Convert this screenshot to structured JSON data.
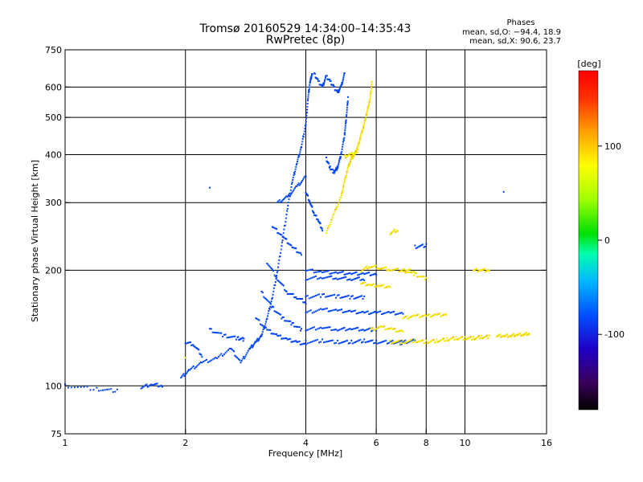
{
  "chart_data": {
    "type": "scatter",
    "title": "Tromsø 20160529 14:34:00–14:35:43",
    "subtitle": "RwPretec (8p)",
    "xlabel": "Frequency [MHz]",
    "ylabel": "Stationary phase Virtual Height [km]",
    "xscale": "log",
    "yscale": "log",
    "xlim": [
      1,
      16
    ],
    "ylim": [
      75,
      750
    ],
    "x_ticks": [
      1,
      2,
      4,
      6,
      8,
      10,
      16
    ],
    "x_tick_labels": [
      "1",
      "2",
      "4",
      "6",
      "8",
      "10",
      "16"
    ],
    "y_ticks": [
      75,
      100,
      200,
      300,
      400,
      500,
      600,
      750
    ],
    "y_tick_labels": [
      "75",
      "100",
      "200",
      "300",
      "400",
      "500",
      "600",
      "750"
    ],
    "grid": true,
    "info": {
      "heading": "Phases",
      "line_o": "mean, sd,O: −94.4, 18.9",
      "line_x": "mean, sd,X:  90.6, 23.7"
    },
    "colorbar": {
      "label": "[deg]",
      "range": [
        -180,
        180
      ],
      "ticks": [
        100,
        0,
        -100
      ],
      "tick_labels": [
        "100",
        "0",
        "-100"
      ]
    },
    "series": [
      {
        "polarity": "O-mode traces (phase ≈ −94°)",
        "phase": -94,
        "traces": [
          [
            [
              1.0,
              100
            ],
            [
              1.2,
              98
            ],
            [
              1.35,
              97
            ]
          ],
          [
            [
              1.55,
              99
            ],
            [
              1.65,
              101
            ],
            [
              1.75,
              100
            ]
          ],
          [
            [
              1.95,
              105
            ],
            [
              2.05,
              110
            ],
            [
              2.2,
              115
            ],
            [
              2.4,
              118
            ],
            [
              2.6,
              125
            ],
            [
              2.75,
              115
            ],
            [
              2.9,
              125
            ],
            [
              3.0,
              130
            ],
            [
              3.1,
              135
            ]
          ],
          [
            [
              2.3,
              140
            ],
            [
              2.5,
              135
            ],
            [
              2.7,
              133
            ],
            [
              2.8,
              132
            ]
          ],
          [
            [
              2.0,
              130
            ],
            [
              2.1,
              128
            ],
            [
              2.2,
              120
            ]
          ],
          [
            [
              3.1,
              135
            ],
            [
              3.2,
              150
            ],
            [
              3.3,
              170
            ],
            [
              3.4,
              200
            ],
            [
              3.5,
              240
            ],
            [
              3.6,
              290
            ],
            [
              3.7,
              340
            ],
            [
              3.8,
              380
            ],
            [
              3.9,
              420
            ],
            [
              4.0,
              480
            ],
            [
              4.05,
              560
            ],
            [
              4.1,
              620
            ],
            [
              4.15,
              650
            ]
          ],
          [
            [
              4.2,
              650
            ],
            [
              4.3,
              620
            ],
            [
              4.4,
              600
            ],
            [
              4.5,
              640
            ],
            [
              4.6,
              620
            ],
            [
              4.7,
              600
            ],
            [
              4.8,
              580
            ],
            [
              4.9,
              600
            ],
            [
              5.0,
              650
            ]
          ],
          [
            [
              4.5,
              390
            ],
            [
              4.6,
              370
            ],
            [
              4.7,
              360
            ],
            [
              4.8,
              370
            ],
            [
              4.9,
              400
            ],
            [
              5.0,
              450
            ],
            [
              5.05,
              500
            ],
            [
              5.1,
              560
            ]
          ],
          [
            [
              4.0,
              320
            ],
            [
              4.1,
              300
            ],
            [
              4.2,
              280
            ],
            [
              4.3,
              270
            ],
            [
              4.4,
              255
            ]
          ],
          [
            [
              3.0,
              150
            ],
            [
              3.2,
              140
            ],
            [
              3.4,
              135
            ],
            [
              3.6,
              132
            ],
            [
              3.8,
              130
            ],
            [
              4.0,
              128
            ]
          ],
          [
            [
              3.1,
              175
            ],
            [
              3.3,
              160
            ],
            [
              3.5,
              150
            ],
            [
              3.7,
              145
            ],
            [
              3.9,
              140
            ]
          ],
          [
            [
              3.2,
              210
            ],
            [
              3.4,
              190
            ],
            [
              3.6,
              175
            ],
            [
              3.8,
              170
            ],
            [
              4.0,
              165
            ]
          ],
          [
            [
              3.3,
              260
            ],
            [
              3.5,
              245
            ],
            [
              3.7,
              230
            ],
            [
              3.9,
              220
            ]
          ],
          [
            [
              3.4,
              300
            ],
            [
              3.6,
              310
            ],
            [
              3.8,
              330
            ],
            [
              4.0,
              350
            ]
          ],
          [
            [
              4.0,
              130
            ],
            [
              4.4,
              131
            ],
            [
              4.8,
              130
            ],
            [
              5.2,
              130
            ],
            [
              5.6,
              131
            ],
            [
              6.0,
              130
            ],
            [
              6.5,
              130
            ],
            [
              7.0,
              129
            ]
          ],
          [
            [
              4.0,
              140
            ],
            [
              4.4,
              142
            ],
            [
              4.8,
              140
            ],
            [
              5.2,
              141
            ],
            [
              5.6,
              140
            ],
            [
              6.0,
              140
            ]
          ],
          [
            [
              4.0,
              155
            ],
            [
              4.4,
              158
            ],
            [
              4.8,
              157
            ],
            [
              5.2,
              156
            ],
            [
              5.6,
              155
            ],
            [
              6.0,
              155
            ],
            [
              6.5,
              155
            ],
            [
              7.0,
              154
            ]
          ],
          [
            [
              4.0,
              170
            ],
            [
              4.4,
              172
            ],
            [
              4.8,
              171
            ],
            [
              5.2,
              170
            ],
            [
              5.6,
              170
            ]
          ],
          [
            [
              4.0,
              190
            ],
            [
              4.4,
              192
            ],
            [
              4.8,
              191
            ],
            [
              5.2,
              190
            ],
            [
              5.6,
              190
            ]
          ],
          [
            [
              4.0,
              200
            ],
            [
              4.4,
              198
            ],
            [
              4.8,
              197
            ],
            [
              5.2,
              196
            ],
            [
              5.6,
              196
            ],
            [
              6.0,
              195
            ]
          ],
          [
            [
              6.5,
              130
            ],
            [
              7.0,
              130
            ],
            [
              7.5,
              131
            ]
          ],
          [
            [
              7.5,
              230
            ],
            [
              8.0,
              232
            ]
          ],
          [
            [
              2.3,
              330
            ]
          ],
          [
            [
              12.5,
              320
            ]
          ]
        ]
      },
      {
        "polarity": "X-mode traces (phase ≈ +91°)",
        "phase": 91,
        "traces": [
          [
            [
              4.5,
              250
            ],
            [
              4.7,
              280
            ],
            [
              4.9,
              310
            ],
            [
              5.0,
              340
            ],
            [
              5.1,
              370
            ],
            [
              5.2,
              390
            ],
            [
              5.3,
              400
            ],
            [
              5.4,
              420
            ],
            [
              5.5,
              450
            ],
            [
              5.6,
              480
            ],
            [
              5.7,
              520
            ],
            [
              5.8,
              560
            ],
            [
              5.85,
              620
            ]
          ],
          [
            [
              5.0,
              395
            ],
            [
              5.2,
              400
            ],
            [
              5.4,
              410
            ]
          ],
          [
            [
              5.5,
              200
            ],
            [
              5.8,
              205
            ],
            [
              6.1,
              203
            ],
            [
              6.5,
              201
            ],
            [
              7.0,
              200
            ],
            [
              7.5,
              199
            ]
          ],
          [
            [
              5.5,
              185
            ],
            [
              5.8,
              183
            ],
            [
              6.1,
              182
            ],
            [
              6.5,
              181
            ]
          ],
          [
            [
              5.8,
              140
            ],
            [
              6.2,
              142
            ],
            [
              6.6,
              140
            ],
            [
              7.0,
              138
            ]
          ],
          [
            [
              6.5,
              130
            ],
            [
              7.0,
              130
            ],
            [
              7.5,
              131
            ],
            [
              8.0,
              130
            ],
            [
              8.5,
              131
            ],
            [
              9.0,
              132
            ],
            [
              9.5,
              133
            ],
            [
              10.0,
              133
            ],
            [
              10.5,
              133
            ],
            [
              11.0,
              134
            ],
            [
              11.5,
              134
            ]
          ],
          [
            [
              12.0,
              135
            ],
            [
              12.5,
              135
            ],
            [
              13.0,
              135
            ],
            [
              13.5,
              136
            ],
            [
              14.0,
              136
            ],
            [
              14.5,
              137
            ]
          ],
          [
            [
              7.0,
              150
            ],
            [
              7.5,
              152
            ],
            [
              8.0,
              152
            ],
            [
              8.5,
              153
            ],
            [
              9.0,
              153
            ]
          ],
          [
            [
              7.0,
              200
            ],
            [
              7.5,
              195
            ],
            [
              8.0,
              190
            ]
          ],
          [
            [
              6.5,
              250
            ],
            [
              6.8,
              255
            ]
          ],
          [
            [
              10.5,
              200
            ],
            [
              11.0,
              200
            ],
            [
              11.5,
              200
            ]
          ],
          [
            [
              2.0,
              118
            ]
          ]
        ]
      }
    ]
  }
}
